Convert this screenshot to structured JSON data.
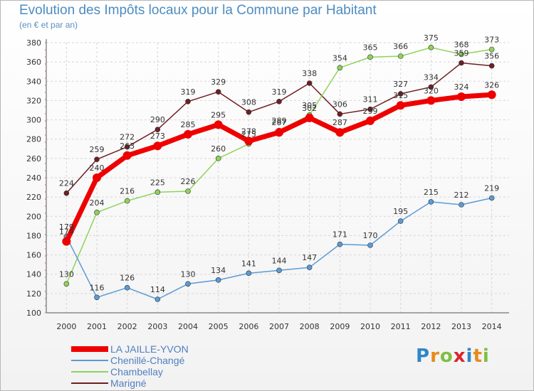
{
  "title": "Evolution des Impôts locaux pour la Commune par Habitant",
  "subtitle": "(en € et par an)",
  "brand": {
    "letters": [
      "P",
      "r",
      "o",
      "x",
      "i",
      "t",
      "i"
    ],
    "colors": [
      "#2e86c8",
      "#e88a1a",
      "#7fbf3f",
      "#d9262c",
      "#2e86c8",
      "#e88a1a",
      "#7fbf3f"
    ]
  },
  "chart_data": {
    "type": "line",
    "title": "Evolution des Impôts locaux pour la Commune par Habitant",
    "ylabel": "(en € et par an)",
    "xlabel": "",
    "x": [
      "2000",
      "2001",
      "2002",
      "2003",
      "2004",
      "2005",
      "2006",
      "2007",
      "2008",
      "2009",
      "2010",
      "2011",
      "2012",
      "2013",
      "2014"
    ],
    "ylim": [
      100,
      380
    ],
    "yticks": [
      "100",
      "120",
      "140",
      "160",
      "180",
      "200",
      "220",
      "240",
      "260",
      "280",
      "300",
      "320",
      "340",
      "360",
      "380"
    ],
    "grid": true,
    "legend_position": "bottom-left",
    "series": [
      {
        "name": "Marigné",
        "color": "#6e1f22",
        "values": [
          224,
          259,
          272,
          290,
          319,
          329,
          308,
          319,
          338,
          306,
          311,
          327,
          334,
          359,
          356
        ],
        "labels": [
          "224",
          "259",
          "272",
          "290",
          "319",
          "329",
          "308",
          "319",
          "338",
          "306",
          "311",
          "327",
          "334",
          "359",
          "356"
        ]
      },
      {
        "name": "Chambellay",
        "color": "#8fd35a",
        "values": [
          130,
          204,
          216,
          225,
          226,
          260,
          275,
          289,
          305,
          354,
          365,
          366,
          375,
          368,
          373
        ],
        "labels": [
          "130",
          "204",
          "216",
          "225",
          "226",
          "260",
          "275",
          "289",
          "305",
          "354",
          "365",
          "366",
          "375",
          "368",
          "373"
        ]
      },
      {
        "name": "Chenillé-Changé",
        "color": "#5b9bd5",
        "values": [
          179,
          116,
          126,
          114,
          130,
          134,
          141,
          144,
          147,
          171,
          170,
          195,
          215,
          212,
          219
        ],
        "labels": [
          "179",
          "116",
          "126",
          "114",
          "130",
          "134",
          "141",
          "144",
          "147",
          "171",
          "170",
          "195",
          "215",
          "212",
          "219"
        ]
      },
      {
        "name": "LA JAILLE-YVON",
        "color": "#ee0000",
        "values": [
          174,
          240,
          263,
          273,
          285,
          295,
          278,
          287,
          302,
          287,
          299,
          315,
          320,
          324,
          326
        ],
        "labels": [
          "174",
          "240",
          "263",
          "273",
          "285",
          "295",
          "278",
          "287",
          "302",
          "287",
          "299",
          "315",
          "320",
          "324",
          "326"
        ]
      }
    ],
    "legend": [
      "LA JAILLE-YVON",
      "Chenillé-Changé",
      "Chambellay",
      "Marigné"
    ]
  }
}
